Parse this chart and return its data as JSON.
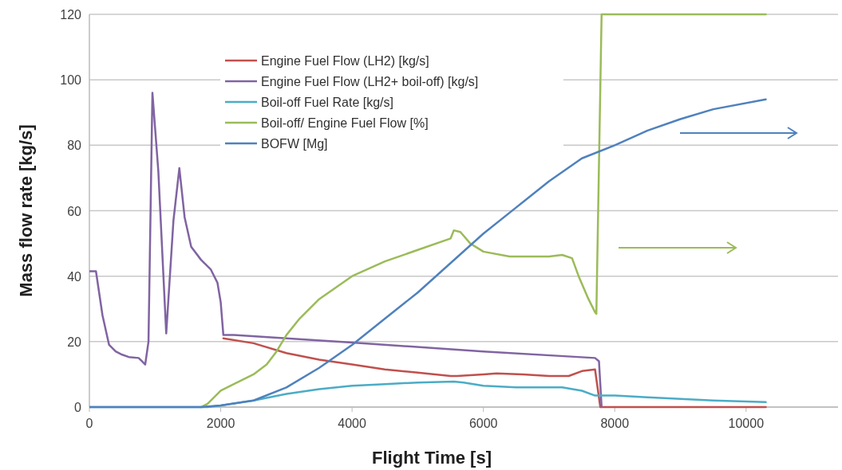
{
  "chart_data": {
    "type": "line",
    "xlabel": "Flight Time [s]",
    "ylabel": "Mass flow rate [kg/s]",
    "xlim": [
      0,
      11400
    ],
    "ylim": [
      0,
      120
    ],
    "xticks": [
      0,
      2000,
      4000,
      6000,
      8000,
      10000
    ],
    "yticks": [
      0,
      20,
      40,
      60,
      80,
      100,
      120
    ],
    "grid": "y",
    "legend": "top",
    "marker": "none",
    "line_style": "solid",
    "series": [
      {
        "name": "Engine Fuel Flow (LH2) [kg/s]",
        "color": "#c0504d",
        "x": [
          2040,
          2500,
          3000,
          3500,
          4000,
          4500,
          5000,
          5500,
          5600,
          6000,
          6200,
          6600,
          7000,
          7300,
          7500,
          7700,
          7780,
          10300
        ],
        "values": [
          21,
          19.5,
          16.5,
          14.5,
          13,
          11.5,
          10.5,
          9.5,
          9.5,
          10,
          10.3,
          10,
          9.5,
          9.5,
          11,
          11.5,
          0,
          0
        ]
      },
      {
        "name": "Engine Fuel Flow (LH2+ boil-off) [kg/s]",
        "color": "#8064a2",
        "x": [
          0,
          100,
          200,
          300,
          400,
          500,
          600,
          750,
          800,
          850,
          900,
          960,
          1050,
          1170,
          1280,
          1370,
          1450,
          1550,
          1700,
          1850,
          1950,
          2000,
          2040,
          2200,
          4000,
          6000,
          7700,
          7760,
          7800
        ],
        "values": [
          41.5,
          41.5,
          28,
          19,
          17,
          16,
          15.3,
          15,
          14,
          13,
          20,
          96,
          72,
          22.5,
          57,
          73,
          58,
          49,
          45,
          42,
          38,
          32,
          22,
          22,
          19.7,
          17,
          15,
          14,
          0
        ]
      },
      {
        "name": "Boil-off Fuel Rate [kg/s]",
        "color": "#4bacc6",
        "x": [
          0,
          1800,
          2000,
          2500,
          3000,
          3500,
          4000,
          4500,
          5000,
          5550,
          5700,
          6000,
          6500,
          7200,
          7500,
          7700,
          8000,
          8500,
          9000,
          9500,
          10300
        ],
        "values": [
          0,
          0,
          0.5,
          2,
          4,
          5.5,
          6.5,
          7,
          7.5,
          7.8,
          7.5,
          6.5,
          6,
          6,
          5,
          3.5,
          3.5,
          3,
          2.5,
          2,
          1.5
        ]
      },
      {
        "name": "Boil-off/ Engine Fuel Flow [%]",
        "color": "#9bbb59",
        "x": [
          1700,
          1800,
          2000,
          2200,
          2500,
          2700,
          2850,
          3000,
          3200,
          3500,
          4000,
          4500,
          5000,
          5500,
          5550,
          5650,
          5800,
          6000,
          6400,
          7000,
          7200,
          7350,
          7450,
          7600,
          7700,
          7720,
          7800,
          10300
        ],
        "values": [
          0,
          1,
          5,
          7,
          10,
          13,
          17,
          22,
          27,
          33,
          40,
          44.5,
          48,
          51.5,
          54,
          53.5,
          50,
          47.5,
          46,
          46,
          46.5,
          45.5,
          40,
          33,
          29,
          28.5,
          120,
          120
        ]
      },
      {
        "name": "BOFW [Mg]",
        "color": "#4f81bd",
        "x": [
          0,
          1700,
          2000,
          2500,
          3000,
          3500,
          4000,
          4500,
          5000,
          5500,
          6000,
          6500,
          7000,
          7500,
          8000,
          8500,
          9000,
          9500,
          10300
        ],
        "values": [
          0,
          0,
          0.5,
          2,
          6,
          12,
          19,
          27,
          35,
          44,
          53,
          61,
          69,
          76,
          80,
          84.5,
          88,
          91,
          94
        ]
      }
    ]
  }
}
